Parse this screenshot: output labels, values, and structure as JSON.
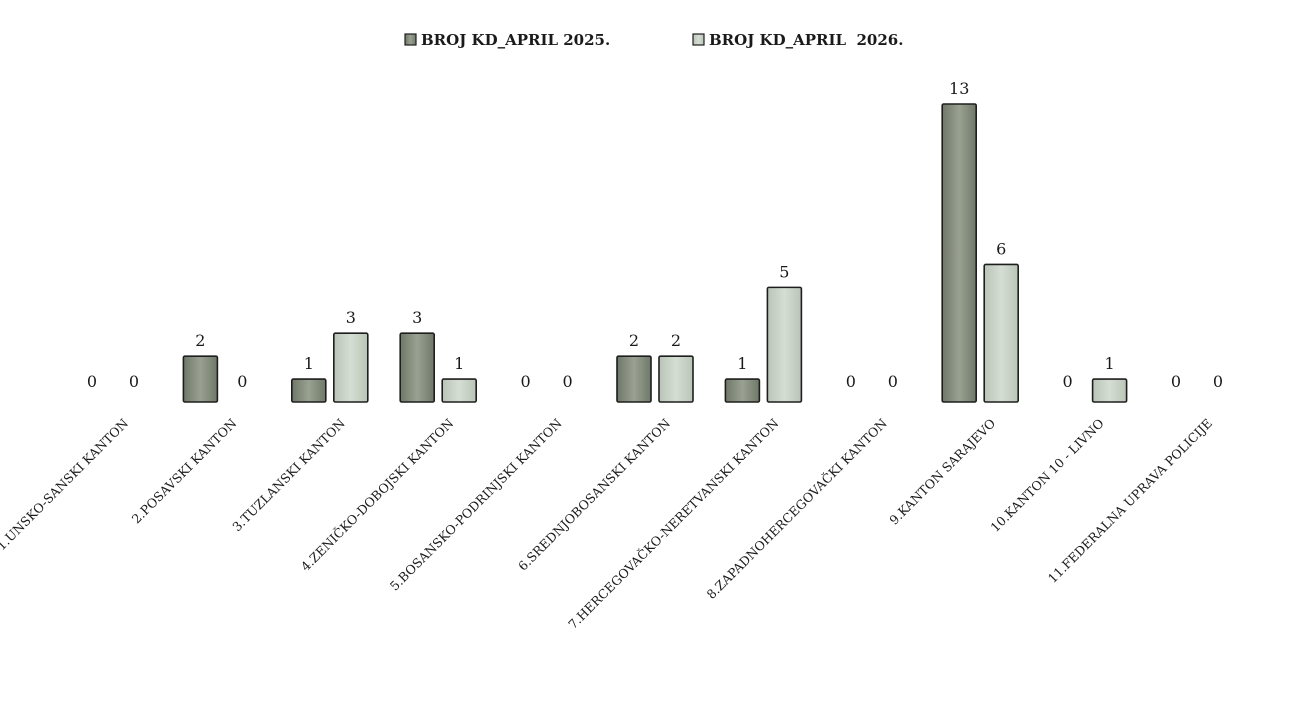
{
  "chart_data": {
    "type": "bar",
    "categories": [
      "1.UNSKO-SANSKI KANTON",
      "2.POSAVSKI KANTON",
      "3.TUZLANSKI KANTON",
      "4.ZENIČKO-DOBOJSKI KANTON",
      "5.BOSANSKO-PODRINJSKI KANTON",
      "6.SREDNJOBOSANSKI KANTON",
      "7.HERCEGOVAČKO-NERETVANSKI KANTON",
      "8.ZAPADNOHERCEGOVAČKI KANTON",
      "9.KANTON SARAJEVO",
      "10.KANTON 10 - LIVNO",
      "11.FEDERALNA UPRAVA POLICIJE"
    ],
    "series": [
      {
        "name": "BROJ KD_APRIL 2025.",
        "values": [
          0,
          2,
          1,
          3,
          0,
          2,
          1,
          0,
          13,
          0,
          0
        ],
        "color": "#8a9280"
      },
      {
        "name": "BROJ KD_APRIL  2026.",
        "values": [
          0,
          0,
          3,
          1,
          0,
          2,
          5,
          0,
          6,
          1,
          0
        ],
        "color": "#c8d2c6"
      }
    ],
    "title": "",
    "xlabel": "",
    "ylabel": "",
    "ylim": [
      0,
      13
    ],
    "grid": false,
    "legend_position": "top-center",
    "data_labels": true
  }
}
